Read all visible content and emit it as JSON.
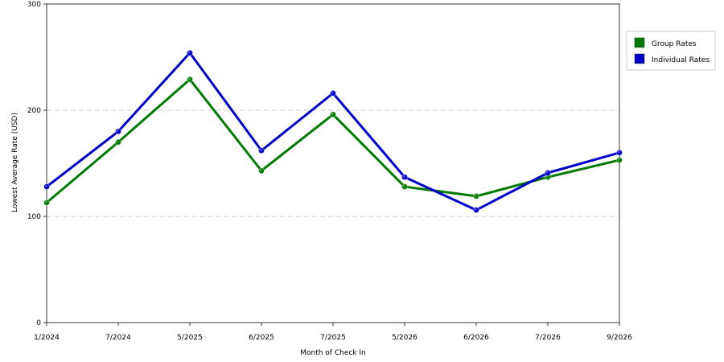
{
  "chart_data": {
    "type": "line",
    "title": "",
    "xlabel": "Month of Check In",
    "ylabel": "Lowest Average Rate (USD)",
    "categories": [
      "1/2024",
      "7/2024",
      "5/2025",
      "6/2025",
      "7/2025",
      "5/2026",
      "6/2026",
      "7/2026",
      "9/2026"
    ],
    "ylim": [
      0,
      300
    ],
    "yticks": [
      0,
      100,
      200,
      300
    ],
    "grid": true,
    "legend_position": "top-right",
    "series": [
      {
        "name": "Group Rates",
        "color": "#007a00",
        "values": [
          113,
          170,
          229,
          143,
          196,
          128,
          119,
          137,
          153
        ]
      },
      {
        "name": "Individual Rates",
        "color": "#0000cc",
        "values": [
          128,
          180,
          254,
          162,
          216,
          137,
          106,
          141,
          160
        ]
      }
    ]
  }
}
